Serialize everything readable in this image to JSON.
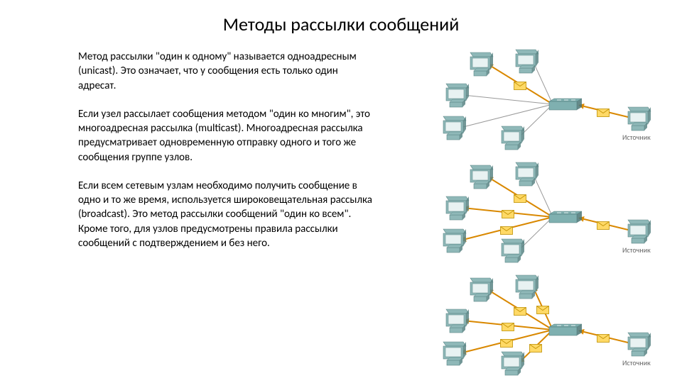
{
  "title": "Методы рассылки сообщений",
  "paragraphs": {
    "p1": "Метод рассылки \"один к одному\" называется одноадресным (unicast). Это означает, что у сообщения есть только один адресат.",
    "p2": "Если узел рассылает сообщения методом \"один ко многим\", это многоадресная рассылка (multicast). Многоадресная рассылка предусматривает одновременную отправку одного и того же сообщения группе узлов.",
    "p3": "Если всем сетевым узлам необходимо получить сообщение в одно и то же время, используется широковещательная рассылка (broadcast). Это метод рассылки сообщений \"один ко всем\". Кроме того, для узлов предусмотрены правила рассылки сообщений с подтверждением и без него."
  },
  "diagrams": {
    "source_label": "Источник",
    "colors": {
      "computer_body": "#8fb8b8",
      "computer_dark": "#5a8585",
      "switch_body": "#7fb0b0",
      "switch_dark": "#4a7575",
      "arrow_stroke": "#d98800",
      "arrow_fill": "#d98800",
      "envelope_fill": "#ffd966",
      "envelope_stroke": "#bf9000",
      "label_color": "#666666"
    },
    "unicast": {
      "receivers": [
        0
      ]
    },
    "multicast": {
      "receivers": [
        0,
        1,
        2
      ]
    },
    "broadcast": {
      "receivers": [
        0,
        1,
        2,
        3,
        4
      ]
    }
  }
}
